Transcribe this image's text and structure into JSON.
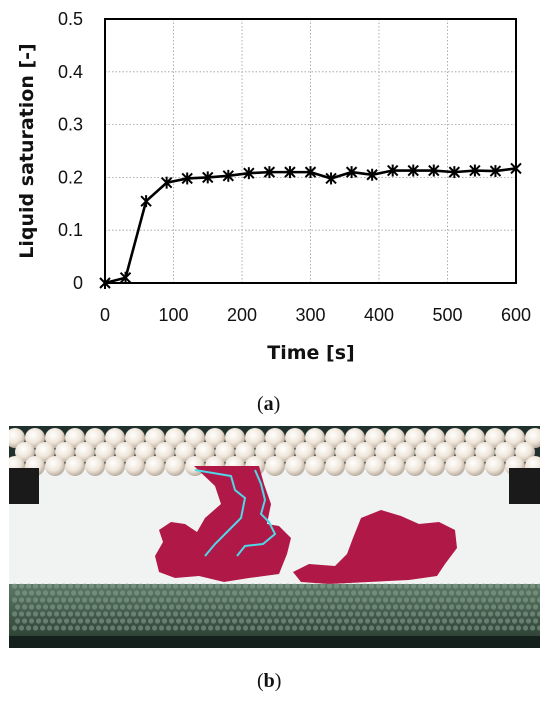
{
  "chart_data": {
    "type": "line",
    "title": "",
    "xlabel": "Time [s]",
    "ylabel": "Liquid saturation [-]",
    "xlim": [
      0,
      600
    ],
    "ylim": [
      0,
      0.5
    ],
    "xticks": [
      "0",
      "100",
      "200",
      "300",
      "400",
      "500",
      "600"
    ],
    "yticks": [
      "0",
      "0.1",
      "0.2",
      "0.3",
      "0.4",
      "0.5"
    ],
    "grid": true,
    "marker": "asterisk",
    "color": "#000000",
    "x": [
      0,
      30,
      60,
      90,
      120,
      150,
      180,
      210,
      240,
      270,
      300,
      330,
      360,
      390,
      420,
      450,
      480,
      510,
      540,
      570,
      600
    ],
    "y": [
      0.0,
      0.01,
      0.155,
      0.19,
      0.198,
      0.2,
      0.203,
      0.208,
      0.21,
      0.21,
      0.21,
      0.198,
      0.21,
      0.205,
      0.213,
      0.213,
      0.213,
      0.21,
      0.213,
      0.212,
      0.217
    ]
  },
  "captions": {
    "a_open": "(",
    "a_letter": "a",
    "a_close": ")",
    "b_open": "(",
    "b_letter": "b",
    "b_close": ")"
  },
  "photo": {
    "description_icon": "packed-bed-photo-icon",
    "colors": {
      "liquid": "#b01848",
      "outline": "#4fd8e8",
      "beads": "#3e5a4a",
      "pearls": "#efe6da"
    }
  }
}
